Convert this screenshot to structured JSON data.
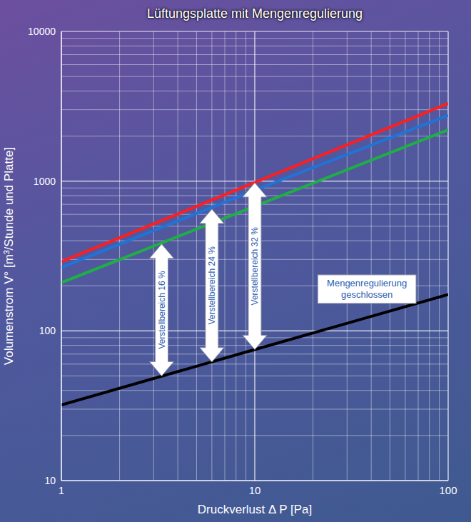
{
  "chart_data": {
    "type": "line",
    "title": "Lüftungsplatte mit Mengenregulierung",
    "x_label": "Druckverlust Δ P [Pa]",
    "y_label": "Volumenstrom V° [m³/Stunde und Platte]",
    "log": true,
    "grid": true,
    "x": [
      1,
      10,
      100
    ],
    "xlim": [
      1,
      100
    ],
    "xticks": [
      1,
      10,
      100
    ],
    "ylim": [
      10,
      10000
    ],
    "yticks": [
      10,
      100,
      1000,
      10000
    ],
    "series": [
      {
        "color": "#ff1e1e",
        "values": [
          290,
          980,
          3300
        ]
      },
      {
        "color": "#1f74d6",
        "values": [
          265,
          870,
          2750
        ]
      },
      {
        "color": "#1fae45",
        "values": [
          210,
          680,
          2200
        ]
      },
      {
        "color": "#000000",
        "values": [
          32,
          75,
          175
        ]
      }
    ],
    "annotations": [
      {
        "text": "Verstellbereich 16 %",
        "x": 3.3,
        "y_from": 50,
        "y_to": 380
      },
      {
        "text": "Verstellbereich 24 %",
        "x": 6,
        "y_from": 62,
        "y_to": 650
      },
      {
        "text": "Verstellbereich 32 %",
        "x": 10,
        "y_from": 75,
        "y_to": 975
      }
    ],
    "label_box": {
      "text": "Mengenregulierung geschlossen",
      "x": 38,
      "y": 190
    }
  }
}
